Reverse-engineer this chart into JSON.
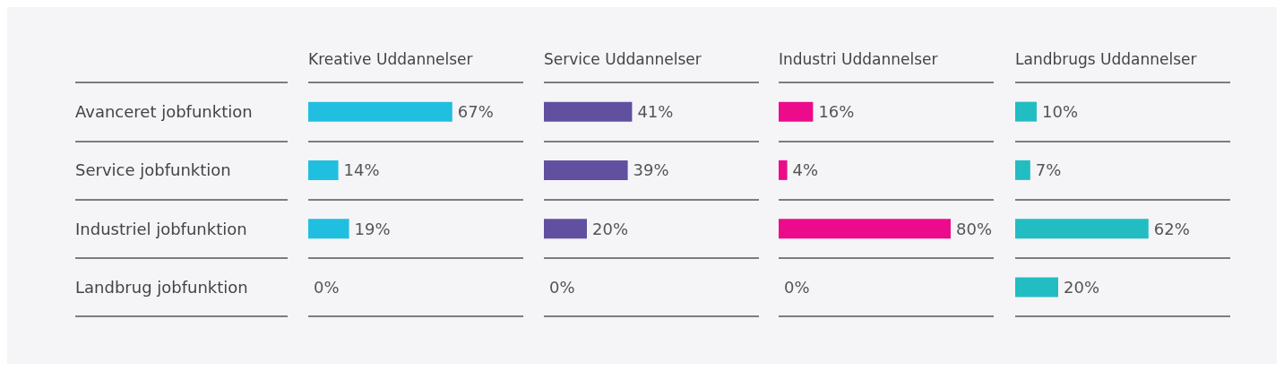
{
  "chart_data": [
    {
      "type": "bar",
      "orientation": "horizontal",
      "title": "Kreative Uddannelser",
      "categories": [
        "Avanceret jobfunktion",
        "Service jobfunktion",
        "Industriel jobfunktion",
        "Landbrug jobfunktion"
      ],
      "values": [
        67,
        14,
        19,
        0
      ],
      "value_labels": [
        "67%",
        "14%",
        "19%",
        "0%"
      ],
      "color": "#20bfdf",
      "xlim": [
        0,
        100
      ],
      "grid": "y",
      "tick_labels": "y"
    },
    {
      "type": "bar",
      "orientation": "horizontal",
      "title": "Service Uddannelser",
      "categories": [
        null,
        null,
        null,
        null
      ],
      "values": [
        41,
        39,
        20,
        0
      ],
      "value_labels": [
        "41%",
        "39%",
        "20%",
        "0%"
      ],
      "color": "#6150a0",
      "xlim": [
        0,
        100
      ],
      "grid": "y",
      "tick_labels": false
    },
    {
      "type": "bar",
      "orientation": "horizontal",
      "title": "Industri Uddannelser",
      "categories": [
        null,
        null,
        null,
        null
      ],
      "values": [
        16,
        4,
        80,
        0
      ],
      "value_labels": [
        "16%",
        "4%",
        "80%",
        "0%"
      ],
      "color": "#ec0c8b",
      "xlim": [
        0,
        100
      ],
      "grid": "y",
      "tick_labels": false
    },
    {
      "type": "bar",
      "orientation": "horizontal",
      "title": "Landbrugs Uddannelser",
      "categories": [
        null,
        null,
        null,
        null
      ],
      "values": [
        10,
        7,
        62,
        20
      ],
      "value_labels": [
        "10%",
        "7%",
        "62%",
        "20%"
      ],
      "color": "#22bdc3",
      "xlim": [
        0,
        100
      ],
      "grid": "y",
      "tick_labels": false
    }
  ]
}
